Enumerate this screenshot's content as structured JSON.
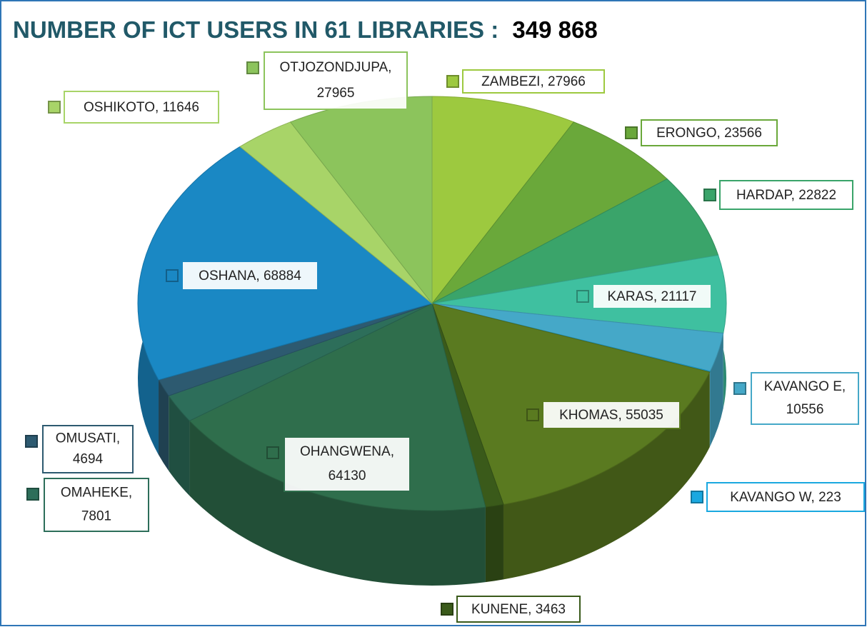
{
  "chart_data": {
    "type": "pie3d",
    "title": "NUMBER OF ICT USERS IN 61 LIBRARIES :",
    "total_label": "349 868",
    "values": [
      27966,
      23566,
      22822,
      21117,
      10556,
      223,
      55035,
      3463,
      64130,
      7801,
      4694,
      68884,
      11646,
      27965
    ],
    "value_labels": [
      "ZAMBEZI, 27966",
      "ERONGO, 23566",
      "HARDAP, 22822",
      "KARAS, 21117",
      "KAVANGO E, 10556",
      "KAVANGO  W, 223",
      "KHOMAS, 55035",
      "KUNENE, 3463",
      "OHANGWENA, 64130",
      "OMAHEKE, 7801",
      "OMUSATI, 4694",
      "OSHANA, 68884",
      "OSHIKOTO, 11646",
      "OTJOZONDJUPA, 27965"
    ],
    "colors": [
      "#9dc93f",
      "#6aa83a",
      "#3aa46a",
      "#3fc0a0",
      "#45a8c8",
      "#1aa8e0",
      "#5a7a20",
      "#3a5a1a",
      "#2f6e4c",
      "#2d6e5a",
      "#2d5a70",
      "#1a88c4",
      "#a8d468",
      "#8cc45c"
    ]
  }
}
